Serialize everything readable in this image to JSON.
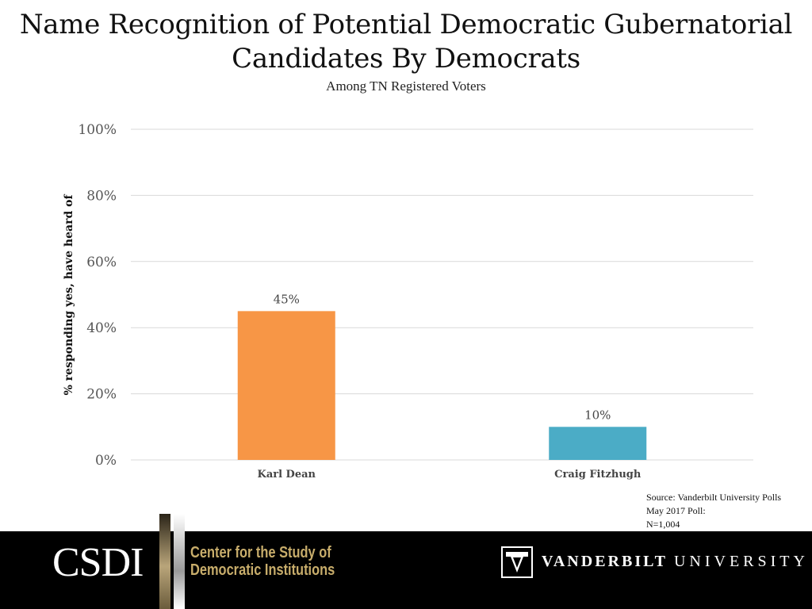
{
  "header": {
    "title_line1": "Name Recognition of Potential Democratic Gubernatorial",
    "title_line2": "Candidates By Democrats",
    "subtitle": "Among TN Registered Voters"
  },
  "chart_data": {
    "type": "bar",
    "title": "Name Recognition of Potential Democratic Gubernatorial Candidates By Democrats",
    "subtitle": "Among TN Registered Voters",
    "categories": [
      "Karl Dean",
      "Craig Fitzhugh"
    ],
    "values": [
      45,
      10
    ],
    "value_labels": [
      "45%",
      "10%"
    ],
    "bar_colors": [
      "#F79646",
      "#4BACC6"
    ],
    "ylabel": "% responding yes, have heard of",
    "xlabel": "",
    "ylim": [
      0,
      100
    ],
    "yticks": [
      0,
      20,
      40,
      60,
      80,
      100
    ],
    "ytick_labels": [
      "0%",
      "20%",
      "40%",
      "60%",
      "80%",
      "100%"
    ],
    "grid": true
  },
  "source": {
    "line1": "Source: Vanderbilt University Polls",
    "line2": "May 2017 Poll:",
    "line3": "N=1,004"
  },
  "footer": {
    "csdi_logo": "CSDI",
    "csdi_name_line1": "Center for the Study of",
    "csdi_name_line2": "Democratic Institutions",
    "vu_name_bold": "VANDERBILT",
    "vu_name_rest": "UNIVERSITY"
  }
}
